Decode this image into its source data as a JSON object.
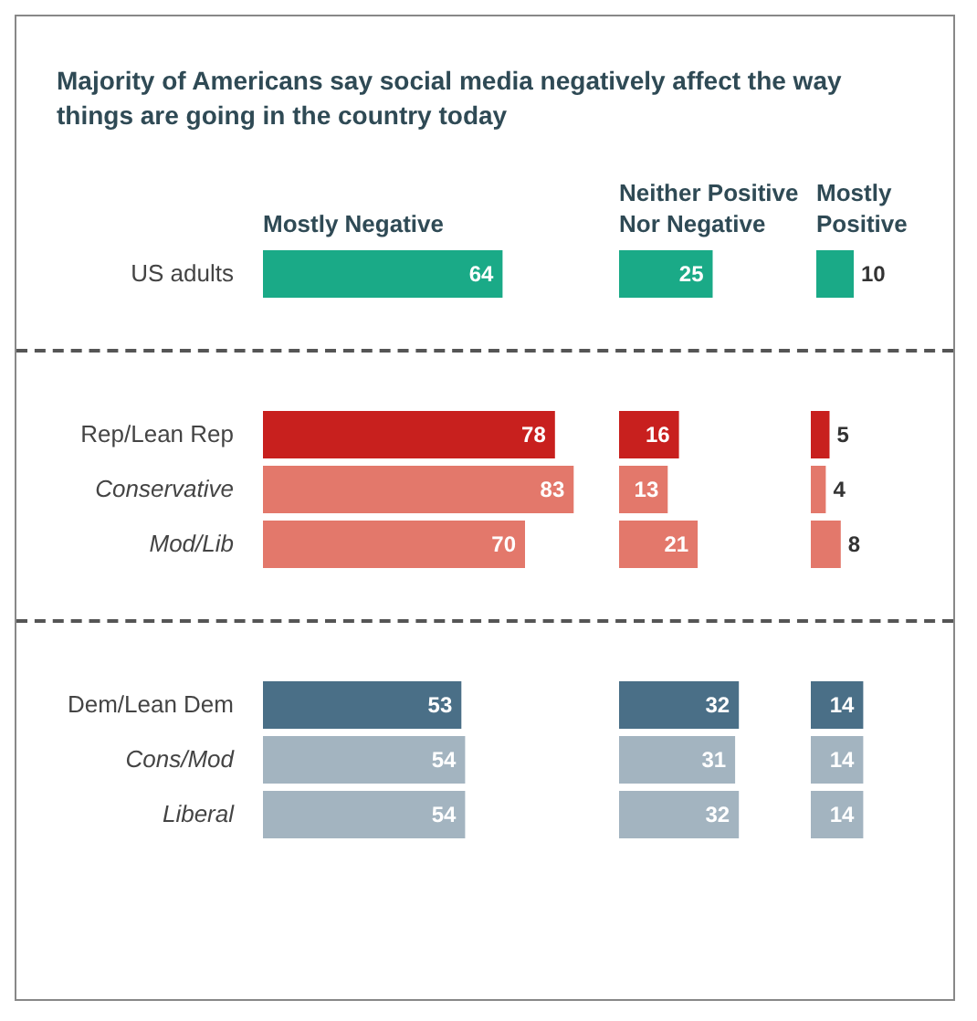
{
  "chart_data": [
    {
      "type": "bar",
      "orientation": "horizontal",
      "title": "Majority of Americans say social media negatively affect the way things are going in the country today",
      "categories": [
        "US adults"
      ],
      "data_labels": true,
      "series": [
        {
          "name": "Mostly Negative",
          "colors": [
            "#1aaa87"
          ],
          "values": [
            64
          ]
        }
      ]
    },
    {
      "type": "bar",
      "orientation": "horizontal",
      "categories": [
        null
      ],
      "data_labels": true,
      "series": [
        {
          "name": "Neither Positive Nor Negative",
          "colors": [
            "#1aaa87"
          ],
          "values": [
            25
          ]
        }
      ]
    },
    {
      "type": "bar",
      "orientation": "horizontal",
      "categories": [
        null
      ],
      "data_labels": true,
      "series": [
        {
          "name": "Mostly Positive",
          "colors": [
            "#1aaa87"
          ],
          "values": [
            10
          ]
        }
      ]
    },
    {
      "type": "bar",
      "orientation": "horizontal",
      "categories": [
        "Rep/Lean Rep",
        "Conservative",
        "Mod/Lib"
      ],
      "data_labels": true,
      "series": [
        {
          "colors": [
            "#c8201e",
            "#e3786b",
            "#e3786b"
          ],
          "values": [
            78,
            83,
            70
          ]
        }
      ]
    },
    {
      "type": "bar",
      "orientation": "horizontal",
      "categories": [
        null,
        null,
        null
      ],
      "data_labels": true,
      "series": [
        {
          "colors": [
            "#c8201e",
            "#e3786b",
            "#e3786b"
          ],
          "values": [
            16,
            13,
            21
          ]
        }
      ]
    },
    {
      "type": "bar",
      "orientation": "horizontal",
      "categories": [
        null,
        null,
        null
      ],
      "data_labels": true,
      "series": [
        {
          "colors": [
            "#c8201e",
            "#e3786b",
            "#e3786b"
          ],
          "values": [
            5,
            4,
            8
          ]
        }
      ]
    },
    {
      "type": "bar",
      "orientation": "horizontal",
      "categories": [
        "Dem/Lean Dem",
        "Cons/Mod",
        "Liberal"
      ],
      "data_labels": true,
      "series": [
        {
          "colors": [
            "#4a6f87",
            "#a3b4c0",
            "#a3b4c0"
          ],
          "values": [
            53,
            54,
            54
          ]
        }
      ]
    },
    {
      "type": "bar",
      "orientation": "horizontal",
      "categories": [
        null,
        null,
        null
      ],
      "data_labels": true,
      "series": [
        {
          "colors": [
            "#4a6f87",
            "#a3b4c0",
            "#a3b4c0"
          ],
          "values": [
            32,
            31,
            32
          ]
        }
      ]
    },
    {
      "type": "bar",
      "orientation": "horizontal",
      "categories": [
        null,
        null,
        null
      ],
      "data_labels": true,
      "series": [
        {
          "colors": [
            "#4a6f87",
            "#a3b4c0",
            "#a3b4c0"
          ],
          "values": [
            14,
            14,
            14
          ]
        }
      ]
    }
  ]
}
